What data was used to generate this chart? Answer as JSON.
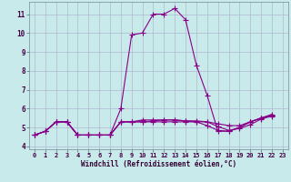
{
  "xlabel": "Windchill (Refroidissement éolien,°C)",
  "background_color": "#c8eaea",
  "grid_color": "#b0b8d0",
  "line_color": "#880088",
  "ylim_min": 3.85,
  "ylim_max": 11.65,
  "xlim_min": -0.5,
  "xlim_max": 23.5,
  "yticks": [
    4,
    5,
    6,
    7,
    8,
    9,
    10,
    11
  ],
  "xticks": [
    0,
    1,
    2,
    3,
    4,
    5,
    6,
    7,
    8,
    9,
    10,
    11,
    12,
    13,
    14,
    15,
    16,
    17,
    18,
    19,
    20,
    21,
    22,
    23
  ],
  "series": [
    [
      4.6,
      4.8,
      5.3,
      5.3,
      4.6,
      4.6,
      4.6,
      4.6,
      6.0,
      9.9,
      10.0,
      11.0,
      11.0,
      11.3,
      10.7,
      8.3,
      6.7,
      4.8,
      4.8,
      5.0,
      5.3,
      5.5,
      5.7
    ],
    [
      4.6,
      4.8,
      5.3,
      5.3,
      4.6,
      4.6,
      4.6,
      4.6,
      5.3,
      5.3,
      5.3,
      5.35,
      5.4,
      5.4,
      5.35,
      5.35,
      5.3,
      5.2,
      5.1,
      5.1,
      5.3,
      5.5,
      5.65
    ],
    [
      4.6,
      4.8,
      5.3,
      5.3,
      4.6,
      4.6,
      4.6,
      4.6,
      5.3,
      5.3,
      5.3,
      5.3,
      5.3,
      5.3,
      5.3,
      5.3,
      5.1,
      4.85,
      4.8,
      5.0,
      5.3,
      5.5,
      5.65
    ],
    [
      4.6,
      4.8,
      5.3,
      5.3,
      4.6,
      4.6,
      4.6,
      4.6,
      5.3,
      5.3,
      5.4,
      5.4,
      5.4,
      5.4,
      5.35,
      5.3,
      5.3,
      5.05,
      4.85,
      4.95,
      5.15,
      5.45,
      5.6
    ]
  ],
  "marker": "+",
  "marker_size": 4,
  "line_width": 0.8,
  "tick_labelsize": 5,
  "xlabel_fontsize": 5.5
}
